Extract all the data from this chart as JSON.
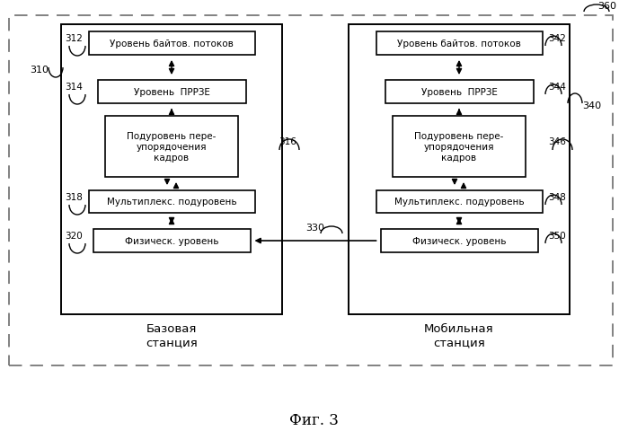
{
  "title": "Фиг. 3",
  "outer_label": "360",
  "left_box_label": "310",
  "right_box_label": "340",
  "left_station": "Базовая\nстанция",
  "right_station": "Мобильная\nстанция",
  "channel_label": "330",
  "left_blocks": [
    {
      "text": "Уровень байтов. потоков",
      "label": "312"
    },
    {
      "text": "Уровень  ПРРЗЕ",
      "label": "314"
    },
    {
      "text": "Подуровень пере-\nупорядочения\nкадров",
      "label": "316"
    },
    {
      "text": "Мультиплекс. подуровень",
      "label": "318"
    },
    {
      "text": "Физическ. уровень",
      "label": "320"
    }
  ],
  "right_blocks": [
    {
      "text": "Уровень байтов. потоков",
      "label": "342"
    },
    {
      "text": "Уровень  ПРРЗЕ",
      "label": "344"
    },
    {
      "text": "Подуровень пере-\nупорядочения\nкадров",
      "label": "346"
    },
    {
      "text": "Мультиплекс. подуровень",
      "label": "348"
    },
    {
      "text": "Физическ. уровень",
      "label": "350"
    }
  ],
  "bg_color": "#ffffff",
  "box_color": "#ffffff",
  "edge_color": "#000000",
  "text_color": "#000000",
  "arrow_color": "#000000",
  "dash_color": "#777777"
}
